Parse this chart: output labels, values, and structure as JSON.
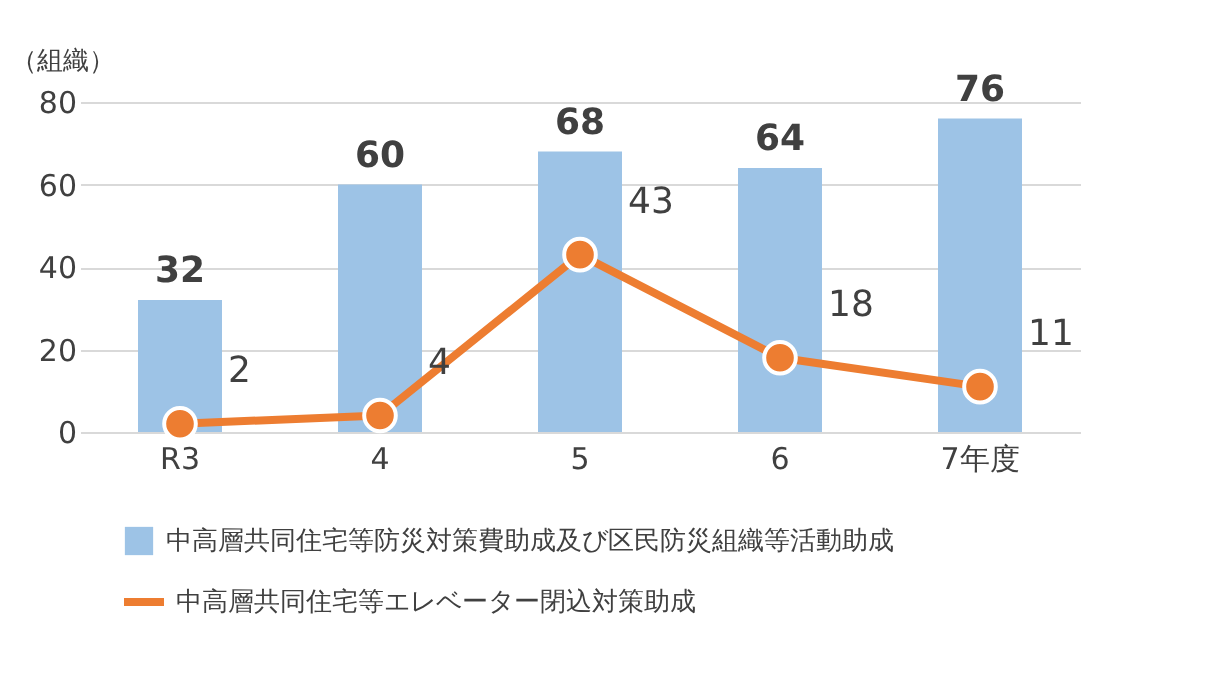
{
  "chart_data": {
    "type": "bar",
    "ylabel": "（組織）",
    "categories": [
      "R3",
      "4",
      "5",
      "6",
      "7年度"
    ],
    "series": [
      {
        "name": "中高層共同住宅等防災対策費助成及び区民防災組織等活動助成",
        "color": "#9dc3e6",
        "values": [
          32,
          60,
          68,
          64,
          76
        ]
      },
      {
        "name": "中高層共同住宅等エレベーター閉込対策助成",
        "type": "line",
        "color": "#ed7d31",
        "values": [
          2,
          4,
          43,
          18,
          11
        ]
      }
    ],
    "ylim": [
      0,
      80
    ],
    "yticks": [
      0,
      20,
      40,
      60,
      80
    ],
    "grid": "y",
    "legend": "bottom",
    "marker": "circle",
    "data_labels": true
  }
}
